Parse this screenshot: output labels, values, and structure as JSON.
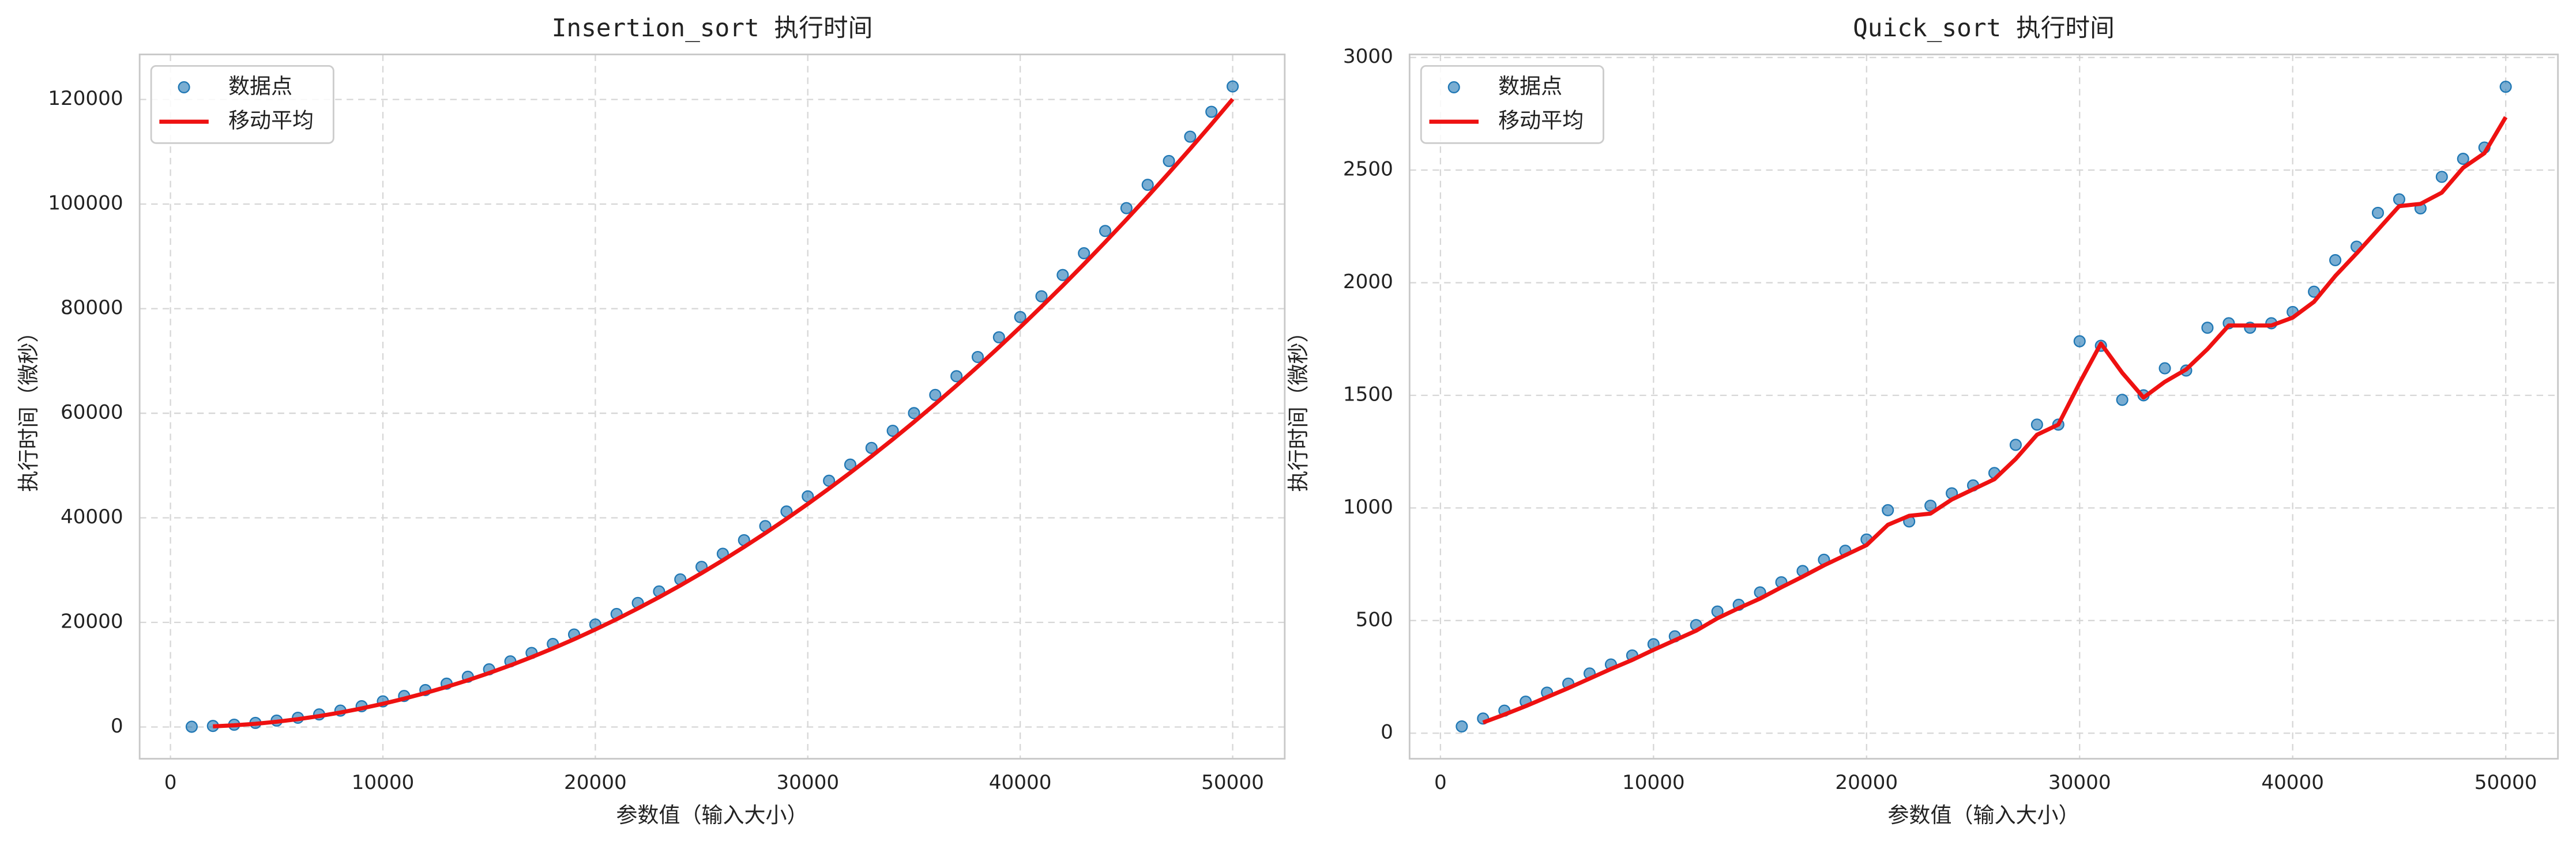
{
  "chart_data": [
    {
      "type": "scatter",
      "title": "Insertion_sort 执行时间",
      "xlabel": "参数值（输入大小）",
      "ylabel": "执行时间（微秒）",
      "x": [
        1000,
        2000,
        3000,
        4000,
        5000,
        6000,
        7000,
        8000,
        9000,
        10000,
        11000,
        12000,
        13000,
        14000,
        15000,
        16000,
        17000,
        18000,
        19000,
        20000,
        21000,
        22000,
        23000,
        24000,
        25000,
        26000,
        27000,
        28000,
        29000,
        30000,
        31000,
        32000,
        33000,
        34000,
        35000,
        36000,
        37000,
        38000,
        39000,
        40000,
        41000,
        42000,
        43000,
        44000,
        45000,
        46000,
        47000,
        48000,
        49000,
        50000
      ],
      "series": [
        {
          "name": "数据点",
          "type": "scatter",
          "color": "#1f77b4",
          "values": [
            49,
            196,
            441,
            784,
            1225,
            1764,
            2401,
            3136,
            3969,
            4900,
            5929,
            7056,
            8281,
            9604,
            11025,
            12544,
            14161,
            15876,
            17689,
            19600,
            21609,
            23716,
            25921,
            28224,
            30625,
            33124,
            35721,
            38416,
            41209,
            44100,
            47089,
            50176,
            53361,
            56644,
            60025,
            63504,
            67081,
            70756,
            74529,
            78400,
            82369,
            86436,
            90601,
            94864,
            99225,
            103684,
            108241,
            112896,
            117649,
            122500
          ]
        },
        {
          "name": "移动平均",
          "type": "line",
          "color": "#ee1111",
          "values": [
            null,
            122.5,
            318.5,
            612.5,
            1004.5,
            1494.5,
            2082.5,
            2768.5,
            3552.5,
            4434.5,
            5414.5,
            6492.5,
            7668.5,
            8942.5,
            10314.5,
            11784.5,
            13352.5,
            15018.5,
            16782.5,
            18644.5,
            20604.5,
            22662.5,
            24818.5,
            27072.5,
            29424.5,
            31874.5,
            34422.5,
            37068.5,
            39812.5,
            42654.5,
            45594.5,
            48632.5,
            51768.5,
            55002.5,
            58334.5,
            61764.5,
            65292.5,
            68918.5,
            72642.5,
            76464.5,
            80384.5,
            84402.5,
            88518.5,
            92732.5,
            97044.5,
            101454.5,
            105962.5,
            110568.5,
            115272.5,
            120074.5
          ]
        }
      ],
      "xlim": [
        -1450,
        52450
      ],
      "xticks": [
        0,
        10000,
        20000,
        30000,
        40000,
        50000
      ],
      "ylim": [
        -6073,
        128622
      ],
      "yticks": [
        0,
        20000,
        40000,
        60000,
        80000,
        100000,
        120000
      ],
      "grid": true,
      "legend": "upper left"
    },
    {
      "type": "scatter",
      "title": "Quick_sort 执行时间",
      "xlabel": "参数值（输入大小）",
      "ylabel": "执行时间（微秒）",
      "x": [
        1000,
        2000,
        3000,
        4000,
        5000,
        6000,
        7000,
        8000,
        9000,
        10000,
        11000,
        12000,
        13000,
        14000,
        15000,
        16000,
        17000,
        18000,
        19000,
        20000,
        21000,
        22000,
        23000,
        24000,
        25000,
        26000,
        27000,
        28000,
        29000,
        30000,
        31000,
        32000,
        33000,
        34000,
        35000,
        36000,
        37000,
        38000,
        39000,
        40000,
        41000,
        42000,
        43000,
        44000,
        45000,
        46000,
        47000,
        48000,
        49000,
        50000
      ],
      "series": [
        {
          "name": "数据点",
          "type": "scatter",
          "color": "#1f77b4",
          "values": [
            30,
            65,
            100,
            140,
            180,
            220,
            265,
            305,
            345,
            395,
            430,
            480,
            540,
            570,
            625,
            670,
            720,
            770,
            810,
            860,
            990,
            940,
            1010,
            1065,
            1100,
            1155,
            1280,
            1370,
            1370,
            1740,
            1720,
            1480,
            1500,
            1620,
            1610,
            1800,
            1820,
            1800,
            1820,
            1870,
            1960,
            2100,
            2160,
            2310,
            2370,
            2330,
            2470,
            2550,
            2600,
            2870
          ]
        },
        {
          "name": "移动平均",
          "type": "line",
          "color": "#ee1111",
          "values": [
            null,
            47.5,
            82.5,
            120,
            160,
            200,
            242.5,
            285,
            325,
            370,
            412.5,
            455,
            510,
            555,
            597.5,
            647.5,
            695,
            745,
            790,
            835,
            925,
            965,
            975,
            1037.5,
            1082.5,
            1127.5,
            1217.5,
            1325,
            1370,
            1555,
            1730,
            1600,
            1490,
            1560,
            1615,
            1705,
            1810,
            1810,
            1810,
            1845,
            1915,
            2030,
            2130,
            2235,
            2340,
            2350,
            2400,
            2510,
            2575,
            2735
          ]
        }
      ],
      "xlim": [
        -1450,
        52450
      ],
      "xticks": [
        0,
        10000,
        20000,
        30000,
        40000,
        50000
      ],
      "ylim": [
        -113.5,
        3013.5
      ],
      "yticks": [
        0,
        500,
        1000,
        1500,
        2000,
        2500,
        3000
      ],
      "grid": true,
      "legend": "upper left"
    }
  ]
}
